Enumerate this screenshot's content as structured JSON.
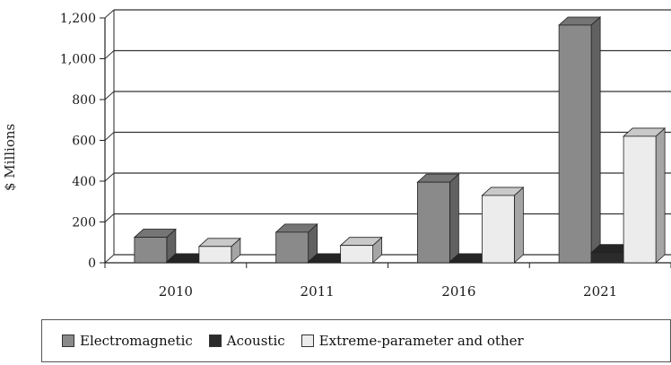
{
  "chart_data": {
    "type": "bar",
    "ylabel": "$ Millions",
    "xlabel": "",
    "categories": [
      "2010",
      "2011",
      "2016",
      "2021"
    ],
    "series": [
      {
        "name": "Electromagnetic",
        "values": [
          125,
          150,
          395,
          1165
        ],
        "color": "#8a8a8a"
      },
      {
        "name": "Acoustic",
        "values": [
          5,
          5,
          5,
          50
        ],
        "color": "#2b2b2b"
      },
      {
        "name": "Extreme-parameter and other",
        "values": [
          80,
          85,
          330,
          620
        ],
        "color": "#ececec"
      }
    ],
    "yticks": [
      "0",
      "200",
      "400",
      "600",
      "800",
      "1,000",
      "1,200"
    ],
    "ylim": [
      0,
      1200
    ],
    "grid": true,
    "legend_position": "bottom",
    "three_d": true
  }
}
